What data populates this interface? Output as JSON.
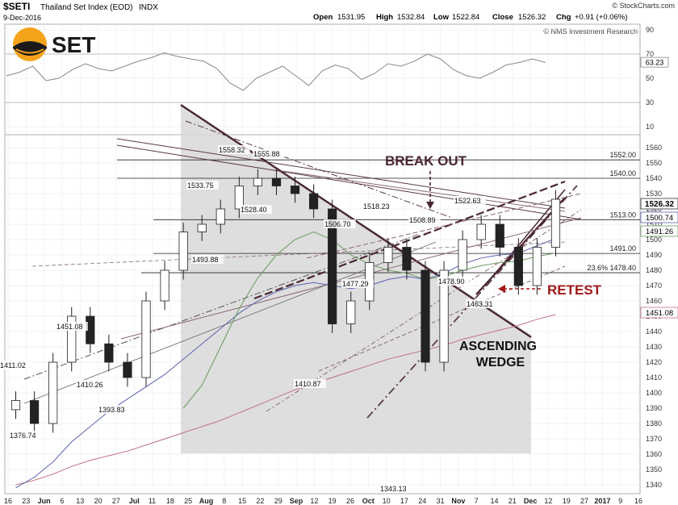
{
  "header": {
    "symbol": "$SETI",
    "name": "Thailand Set Index (EOD)",
    "exchange": "INDX",
    "date": "9-Dec-2016",
    "brand": "© StockCharts.com",
    "open_label": "Open",
    "open": "1531.95",
    "high_label": "High",
    "high": "1532.84",
    "low_label": "Low",
    "low": "1522.84",
    "close_label": "Close",
    "close": "1526.32",
    "chg_label": "Chg",
    "chg": "+0.91 (+0.06%)",
    "credit": "© NMS Investment Research"
  },
  "logo": {
    "text": "SET"
  },
  "colors": {
    "wedge_fill": "#d8d8d8",
    "annotation_dark": "#4a2535",
    "annotation_red": "#a01818",
    "candle": "#222222",
    "rsi_line": "#888888",
    "rsi_fill_over": "#88b070",
    "rsi_fill_under": "#d09090",
    "ma_green": "#6a9a60",
    "ma_blue": "#5b62b0",
    "ma_red": "#c07080"
  },
  "rsi": {
    "axis_ticks": [
      "90",
      "70",
      "50",
      "30",
      "10"
    ],
    "last_value": "63.23",
    "overbought": 70,
    "oversold": 30
  },
  "price_axis": {
    "ticks": [
      "1560",
      "1550",
      "1540",
      "1530",
      "1520",
      "1510",
      "1500",
      "1490",
      "1480",
      "1470",
      "1460",
      "1450",
      "1440",
      "1430",
      "1420",
      "1410",
      "1400",
      "1390",
      "1380",
      "1370",
      "1360",
      "1350",
      "1340"
    ],
    "right_badges": [
      "1526.32",
      "1500.74",
      "1491.26",
      "1451.08"
    ]
  },
  "date_axis": {
    "labels": [
      "16",
      "23",
      "Jun",
      "6",
      "13",
      "20",
      "27",
      "Jul",
      "11",
      "18",
      "25",
      "Aug",
      "8",
      "15",
      "22",
      "29",
      "Sep",
      "12",
      "19",
      "26",
      "Oct",
      "10",
      "17",
      "24",
      "31",
      "Nov",
      "7",
      "14",
      "21",
      "Dec",
      "12",
      "19",
      "27",
      "2017",
      "9",
      "16"
    ]
  },
  "levels": [
    {
      "label": "1552.00"
    },
    {
      "label": "1540.00"
    },
    {
      "label": "1513.00"
    },
    {
      "label": "1491.00"
    },
    {
      "label": "23.6%  1478.40"
    }
  ],
  "price_labels": [
    "1411.02",
    "1376.74",
    "1451.08",
    "1410.26",
    "1393.83",
    "1493.88",
    "1533.75",
    "1558.32",
    "1555.88",
    "1528.40",
    "1506.70",
    "1518.23",
    "1477.29",
    "1410.87",
    "1508.89",
    "1522.63",
    "1478.90",
    "1463.31",
    "1343.13"
  ],
  "annotations": {
    "break_out": "BREAK OUT",
    "retest": "RETEST",
    "wedge_line1": "ASCENDING",
    "wedge_line2": "WEDGE"
  },
  "chart_data": {
    "type": "candlestick",
    "title": "$SETI Thailand Set Index (EOD) INDX",
    "y_axis": "price",
    "ylim": [
      1335,
      1565
    ],
    "x": [
      "2016-05-16",
      "2016-05-23",
      "2016-05-30",
      "2016-06-06",
      "2016-06-13",
      "2016-06-20",
      "2016-06-27",
      "2016-07-04",
      "2016-07-11",
      "2016-07-18",
      "2016-07-25",
      "2016-08-01",
      "2016-08-08",
      "2016-08-15",
      "2016-08-22",
      "2016-08-29",
      "2016-09-05",
      "2016-09-12",
      "2016-09-19",
      "2016-09-26",
      "2016-10-03",
      "2016-10-10",
      "2016-10-17",
      "2016-10-24",
      "2016-10-31",
      "2016-11-07",
      "2016-11-14",
      "2016-11-21",
      "2016-11-28",
      "2016-12-05"
    ],
    "close": [
      1395,
      1380,
      1420,
      1450,
      1432,
      1420,
      1410,
      1460,
      1480,
      1505,
      1510,
      1520,
      1535,
      1540,
      1535,
      1530,
      1520,
      1445,
      1460,
      1485,
      1495,
      1480,
      1420,
      1480,
      1500,
      1510,
      1495,
      1470,
      1495,
      1526.32
    ],
    "marked_values": [
      1411.02,
      1376.74,
      1451.08,
      1410.26,
      1393.83,
      1493.88,
      1533.75,
      1558.32,
      1555.88,
      1528.4,
      1506.7,
      1518.23,
      1477.29,
      1410.87,
      1508.89,
      1522.63,
      1478.9,
      1463.31,
      1343.13
    ],
    "horizontal_levels": [
      1552.0,
      1540.0,
      1513.0,
      1491.0,
      1478.4
    ],
    "last": {
      "open": 1531.95,
      "high": 1532.84,
      "low": 1522.84,
      "close": 1526.32,
      "change": 0.91,
      "change_pct": 0.06
    },
    "moving_averages_last": [
      1500.74,
      1491.26,
      1451.08
    ],
    "rsi_last": 63.23,
    "grid": true
  }
}
